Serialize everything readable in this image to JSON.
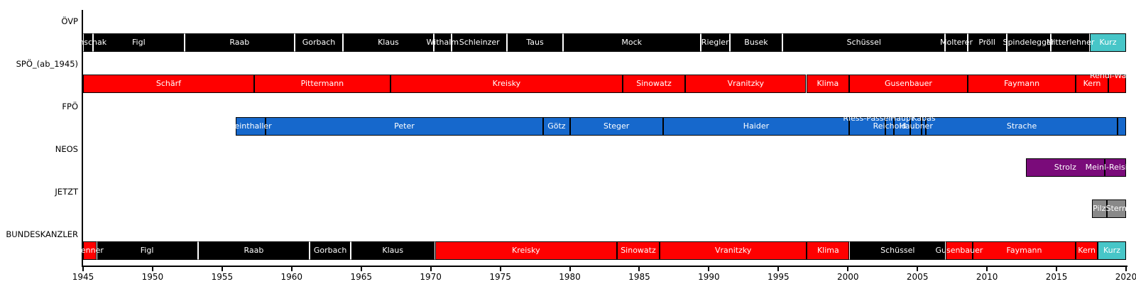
{
  "colors": {
    "ovp": "#000000",
    "spo": "#ff0000",
    "fpo": "#1668cc",
    "turquoise": "#47c6c8",
    "neos": "#7a0b7a",
    "jetzt": "#898989",
    "axis": "#000000",
    "background": "#ffffff"
  },
  "chart_data": {
    "type": "bar",
    "subtype": "timeline_gantt",
    "title": "",
    "xlabel": "",
    "ylabel": "",
    "grid": false,
    "legend": "none",
    "x_axis": {
      "min": 1945,
      "max": 2020,
      "ticks": [
        1945,
        1950,
        1955,
        1960,
        1965,
        1970,
        1975,
        1980,
        1985,
        1990,
        1995,
        2000,
        2005,
        2010,
        2015,
        2020
      ]
    },
    "rows": [
      {
        "label": "ÖVP",
        "segments": [
          {
            "name": "Kunschak",
            "start": 1945.0,
            "end": 1945.7,
            "color": "ovp"
          },
          {
            "name": "Figl",
            "start": 1945.7,
            "end": 1952.3,
            "color": "ovp"
          },
          {
            "name": "Raab",
            "start": 1952.3,
            "end": 1960.2,
            "color": "ovp"
          },
          {
            "name": "Gorbach",
            "start": 1960.2,
            "end": 1963.7,
            "color": "ovp"
          },
          {
            "name": "Klaus",
            "start": 1963.7,
            "end": 1970.2,
            "color": "ovp"
          },
          {
            "name": "Withalm",
            "start": 1970.2,
            "end": 1971.5,
            "color": "ovp"
          },
          {
            "name": "Schleinzer",
            "start": 1971.5,
            "end": 1975.5,
            "color": "ovp"
          },
          {
            "name": "Taus",
            "start": 1975.5,
            "end": 1979.5,
            "color": "ovp"
          },
          {
            "name": "Mock",
            "start": 1979.5,
            "end": 1989.4,
            "color": "ovp"
          },
          {
            "name": "Riegler",
            "start": 1989.4,
            "end": 1991.5,
            "color": "ovp"
          },
          {
            "name": "Busek",
            "start": 1991.5,
            "end": 1995.3,
            "color": "ovp"
          },
          {
            "name": "Schüssel",
            "start": 1995.3,
            "end": 2007.0,
            "color": "ovp"
          },
          {
            "name": "Molterer",
            "start": 2007.0,
            "end": 2008.6,
            "color": "ovp"
          },
          {
            "name": "Pröll",
            "start": 2008.6,
            "end": 2011.4,
            "color": "ovp"
          },
          {
            "name": "Spindelegger",
            "start": 2011.4,
            "end": 2014.6,
            "color": "ovp"
          },
          {
            "name": "Mitterlehner",
            "start": 2014.6,
            "end": 2017.4,
            "color": "ovp"
          },
          {
            "name": "Kurz",
            "start": 2017.4,
            "end": 2020.0,
            "color": "turquoise"
          }
        ]
      },
      {
        "label": "SPÖ_(ab_1945)",
        "segments": [
          {
            "name": "Schärf",
            "start": 1945.0,
            "end": 1957.3,
            "color": "spo"
          },
          {
            "name": "Pittermann",
            "start": 1957.3,
            "end": 1967.1,
            "color": "spo"
          },
          {
            "name": "Kreisky",
            "start": 1967.1,
            "end": 1983.8,
            "color": "spo"
          },
          {
            "name": "Sinowatz",
            "start": 1983.8,
            "end": 1988.3,
            "color": "spo"
          },
          {
            "name": "Vranitzky",
            "start": 1988.3,
            "end": 1997.0,
            "color": "spo"
          },
          {
            "name": "Klima",
            "start": 1997.0,
            "end": 2000.1,
            "color": "spo"
          },
          {
            "name": "Gusenbauer",
            "start": 2000.1,
            "end": 2008.6,
            "color": "spo"
          },
          {
            "name": "Faymann",
            "start": 2008.6,
            "end": 2016.4,
            "color": "spo"
          },
          {
            "name": "Kern",
            "start": 2016.4,
            "end": 2018.7,
            "color": "spo"
          },
          {
            "name": "Rendi-Wagner",
            "start": 2018.7,
            "end": 2020.0,
            "color": "spo",
            "label_pos": "up"
          }
        ]
      },
      {
        "label": "FPÖ",
        "segments": [
          {
            "name": "Reinthaller",
            "start": 1956.0,
            "end": 1958.1,
            "color": "fpo"
          },
          {
            "name": "Peter",
            "start": 1958.1,
            "end": 1978.1,
            "color": "fpo"
          },
          {
            "name": "Götz",
            "start": 1978.1,
            "end": 1980.0,
            "color": "fpo"
          },
          {
            "name": "Steger",
            "start": 1980.0,
            "end": 1986.7,
            "color": "fpo"
          },
          {
            "name": "Haider",
            "start": 1986.7,
            "end": 2000.1,
            "color": "fpo"
          },
          {
            "name": "Riess-Passer",
            "start": 2000.1,
            "end": 2002.7,
            "color": "fpo",
            "label_pos": "up"
          },
          {
            "name": "Reichold",
            "start": 2002.7,
            "end": 2003.3,
            "color": "fpo"
          },
          {
            "name": "Haupt",
            "start": 2003.3,
            "end": 2004.5,
            "color": "fpo",
            "label_pos": "up"
          },
          {
            "name": "Haubner",
            "start": 2004.5,
            "end": 2005.3,
            "color": "fpo"
          },
          {
            "name": "Kabas",
            "start": 2005.3,
            "end": 2005.6,
            "color": "fpo",
            "label_pos": "up"
          },
          {
            "name": "Strache",
            "start": 2005.6,
            "end": 2019.4,
            "color": "fpo"
          },
          {
            "name": "",
            "start": 2019.4,
            "end": 2020.0,
            "color": "fpo"
          }
        ]
      },
      {
        "label": "NEOS",
        "segments": [
          {
            "name": "Strolz",
            "start": 2012.8,
            "end": 2018.45,
            "color": "neos"
          },
          {
            "name": "Meinl-Reisinger",
            "start": 2018.45,
            "end": 2020.0,
            "color": "neos"
          }
        ]
      },
      {
        "label": "JETZT",
        "segments": [
          {
            "name": "Pilz",
            "start": 2017.55,
            "end": 2018.6,
            "color": "jetzt"
          },
          {
            "name": "Stern",
            "start": 2018.6,
            "end": 2020.0,
            "color": "jetzt"
          }
        ]
      },
      {
        "label": "BUNDESKANZLER",
        "segments": [
          {
            "name": "Renner",
            "start": 1945.0,
            "end": 1945.95,
            "color": "spo"
          },
          {
            "name": "Figl",
            "start": 1945.95,
            "end": 1953.25,
            "color": "ovp"
          },
          {
            "name": "Raab",
            "start": 1953.25,
            "end": 1961.3,
            "color": "ovp"
          },
          {
            "name": "Gorbach",
            "start": 1961.3,
            "end": 1964.25,
            "color": "ovp"
          },
          {
            "name": "Klaus",
            "start": 1964.25,
            "end": 1970.3,
            "color": "ovp"
          },
          {
            "name": "Kreisky",
            "start": 1970.3,
            "end": 1983.4,
            "color": "spo"
          },
          {
            "name": "Sinowatz",
            "start": 1983.4,
            "end": 1986.45,
            "color": "spo"
          },
          {
            "name": "Vranitzky",
            "start": 1986.45,
            "end": 1997.05,
            "color": "spo"
          },
          {
            "name": "Klima",
            "start": 1997.05,
            "end": 2000.1,
            "color": "spo"
          },
          {
            "name": "Schüssel",
            "start": 2000.1,
            "end": 2007.05,
            "color": "ovp"
          },
          {
            "name": "Gusenbauer",
            "start": 2007.05,
            "end": 2008.95,
            "color": "spo"
          },
          {
            "name": "Faymann",
            "start": 2008.95,
            "end": 2016.4,
            "color": "spo"
          },
          {
            "name": "Kern",
            "start": 2016.4,
            "end": 2017.95,
            "color": "spo"
          },
          {
            "name": "Kurz",
            "start": 2017.95,
            "end": 2020.0,
            "color": "turquoise"
          }
        ]
      }
    ]
  }
}
